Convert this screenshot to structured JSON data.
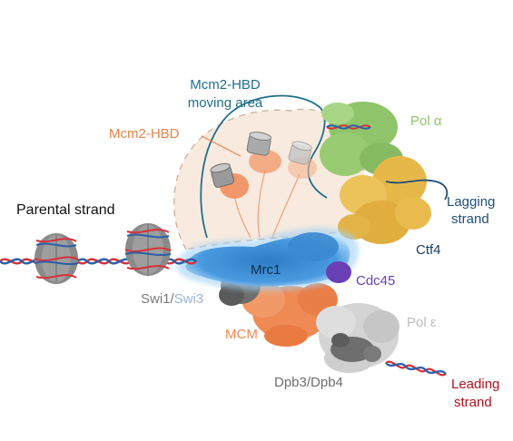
{
  "labels": {
    "mcm2_hbd_moving_area_line1": "Mcm2-HBD",
    "mcm2_hbd_moving_area_line2": "moving area",
    "mcm2_hbd": "Mcm2-HBD",
    "pol_alpha": "Pol α",
    "lagging_strand_line1": "Lagging",
    "lagging_strand_line2": "strand",
    "ctf4": "Ctf4",
    "parental_strand": "Parental strand",
    "mrc1": "Mrc1",
    "cdc45": "Cdc45",
    "swi1": "Swi1",
    "slash": "/",
    "swi3": "Swi3",
    "mcm": "MCM",
    "pol_epsilon": "Pol ε",
    "dpb3_dpb4": "Dpb3/Dpb4",
    "leading_strand_line1": "Leading",
    "leading_strand_line2": "strand"
  },
  "colors": {
    "moving_area_label": "#1f6f8b",
    "mcm2_hbd_label": "#e8834a",
    "pol_alpha": "#8fc46a",
    "ctf4": "#e6b84a",
    "ctf4_label": "#1a3d5c",
    "mrc1": "#3f8fd4",
    "cdc45": "#6a3fb5",
    "swi1_label": "#7a7a7a",
    "swi3_label": "#9bb3d6",
    "mcm": "#ef8a55",
    "pol_epsilon": "#c9c9c9",
    "dpb3_dpb4": "#6e6e6e",
    "leading_label": "#b3121d",
    "dna_red": "#d8303a",
    "dna_blue": "#2c5fa8",
    "histone": "#8a8a8a",
    "moving_area_fill": "#f6e3d3"
  },
  "icons": [
    "nucleosome-icon",
    "histone-cylinder-icon",
    "dna-double-helix-icon"
  ]
}
